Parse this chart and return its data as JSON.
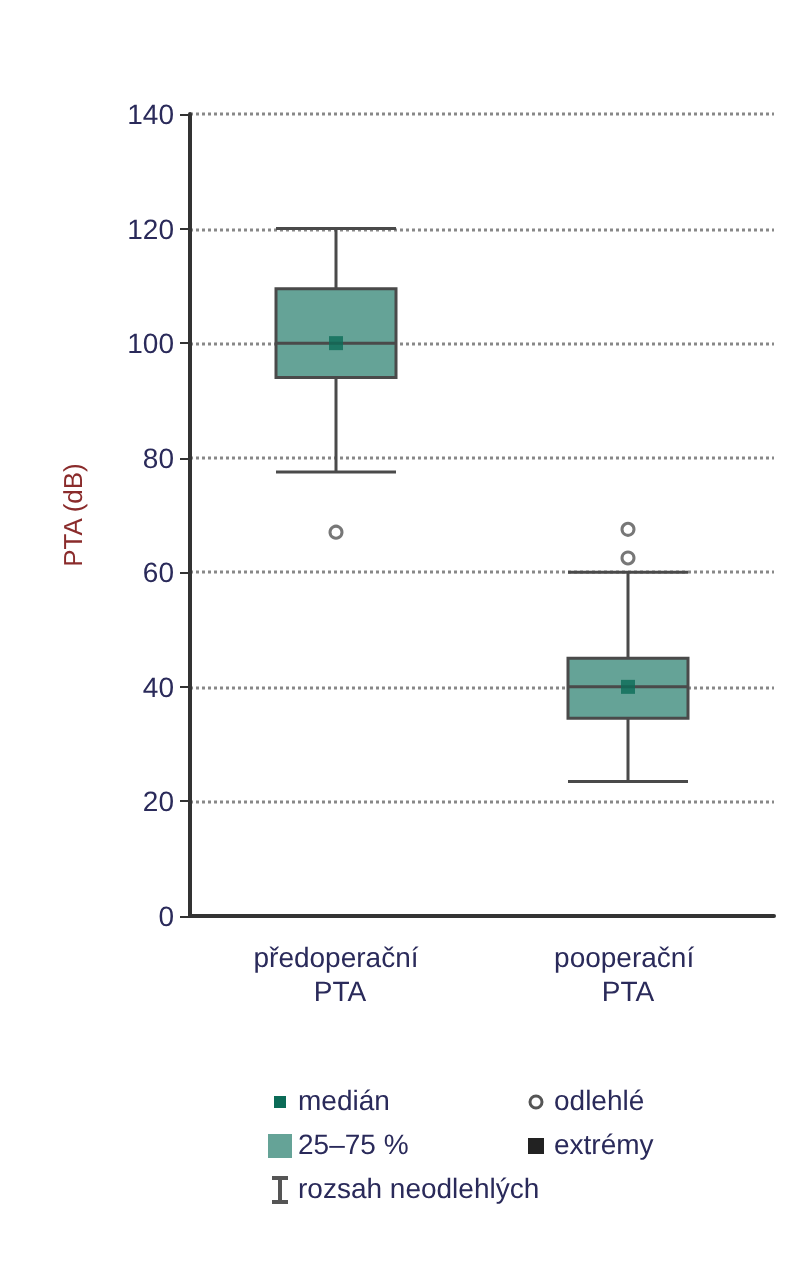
{
  "chart_data": {
    "type": "box",
    "ylabel": "PTA (dB)",
    "categories": [
      "předoperační PTA",
      "pooperační PTA"
    ],
    "series": [
      {
        "type": "box",
        "color": "#65a397",
        "boxes": [
          {
            "low": 77.5,
            "q1": 94,
            "median": 100,
            "q3": 109.5,
            "high": 120,
            "outliers": [
              67
            ]
          },
          {
            "low": 23.5,
            "q1": 34.5,
            "median": 40,
            "q3": 45,
            "high": 60,
            "outliers": [
              62.5,
              67.5
            ]
          }
        ]
      },
      {
        "type": "scatter",
        "color": "#0b6b57",
        "x": [
          "předoperační PTA",
          "pooperační PTA"
        ],
        "values": [
          100,
          40
        ],
        "marker": "square"
      }
    ],
    "ylim": [
      0,
      140
    ],
    "yticks": [
      0,
      20,
      40,
      60,
      80,
      100,
      120,
      140
    ],
    "grid": "y",
    "annotations": [
      "medián",
      "25–75 %",
      "rozsah neodlehlých",
      "odlehlé",
      "extrémy"
    ]
  }
}
